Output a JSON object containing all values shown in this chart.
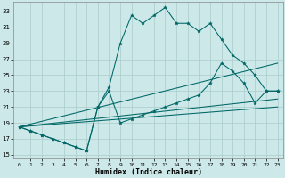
{
  "xlabel": "Humidex (Indice chaleur)",
  "bg_color": "#cce8e8",
  "grid_color": "#aacccc",
  "line_color": "#006666",
  "xlim": [
    -0.5,
    23.5
  ],
  "ylim": [
    14.5,
    34.2
  ],
  "yticks": [
    15,
    17,
    19,
    21,
    23,
    25,
    27,
    29,
    31,
    33
  ],
  "xticks": [
    0,
    1,
    2,
    3,
    4,
    5,
    6,
    7,
    8,
    9,
    10,
    11,
    12,
    13,
    14,
    15,
    16,
    17,
    18,
    19,
    20,
    21,
    22,
    23
  ],
  "line_main_y": [
    18.5,
    18.0,
    17.5,
    17.0,
    16.5,
    16.0,
    15.5,
    21.0,
    23.5,
    29.0,
    32.5,
    31.5,
    32.5,
    33.5,
    31.5,
    31.5,
    30.5,
    31.5,
    29.5,
    27.5,
    26.5,
    25.0,
    23.0,
    23.0
  ],
  "line2_y": [
    18.5,
    18.0,
    17.5,
    17.0,
    16.5,
    16.0,
    15.5,
    21.0,
    23.0,
    19.0,
    19.5,
    20.0,
    20.5,
    21.0,
    21.5,
    22.0,
    22.5,
    24.0,
    26.5,
    25.5,
    24.0,
    21.5,
    23.0,
    23.0
  ],
  "line3_endpoints": [
    [
      0,
      18.5
    ],
    [
      23,
      26.5
    ]
  ],
  "line4_endpoints": [
    [
      0,
      18.5
    ],
    [
      23,
      22.0
    ]
  ],
  "line5_endpoints": [
    [
      0,
      18.5
    ],
    [
      23,
      21.0
    ]
  ]
}
